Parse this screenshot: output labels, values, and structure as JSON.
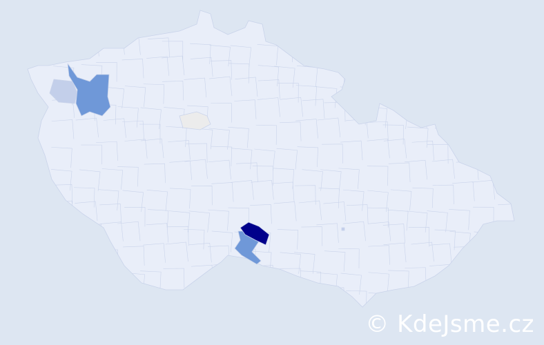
{
  "map": {
    "colors": {
      "background": "#dde6f2",
      "country": "#e9eef9",
      "border": "#c9d3ea",
      "high": "#00008b",
      "medium": "#6f98d8",
      "low": "#c3cfea",
      "neutral": "#ececec"
    }
  },
  "watermark": "© KdeJsme.cz"
}
